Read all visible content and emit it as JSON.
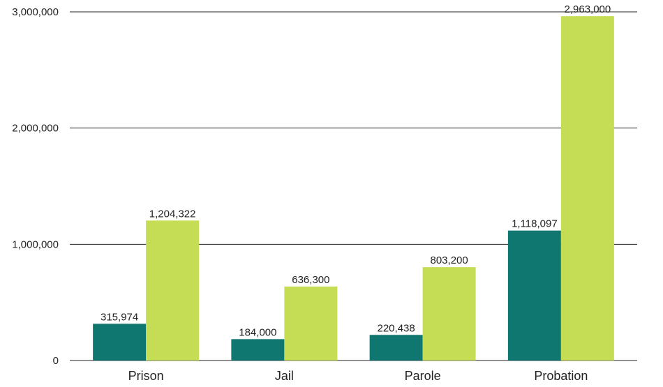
{
  "chart_data": {
    "type": "bar",
    "title": "",
    "xlabel": "",
    "ylabel": "",
    "categories": [
      "Prison",
      "Jail",
      "Parole",
      "Probation"
    ],
    "series": [
      {
        "color": "#0f7670",
        "values": [
          315974,
          184000,
          220438,
          1118097
        ],
        "labels": [
          "315,974",
          "184,000",
          "220,438",
          "1,118,097"
        ]
      },
      {
        "color": "#c5dc55",
        "values": [
          1204322,
          636300,
          803200,
          2963000
        ],
        "labels": [
          "1,204,322",
          "636,300",
          "803,200",
          "2,963,000"
        ]
      }
    ],
    "ylim": [
      0,
      3000000
    ],
    "yticks": [
      0,
      1000000,
      2000000,
      3000000
    ],
    "ytick_labels": [
      "0",
      "1,000,000",
      "2,000,000",
      "3,000,000"
    ],
    "grid": true,
    "legend": "none"
  }
}
